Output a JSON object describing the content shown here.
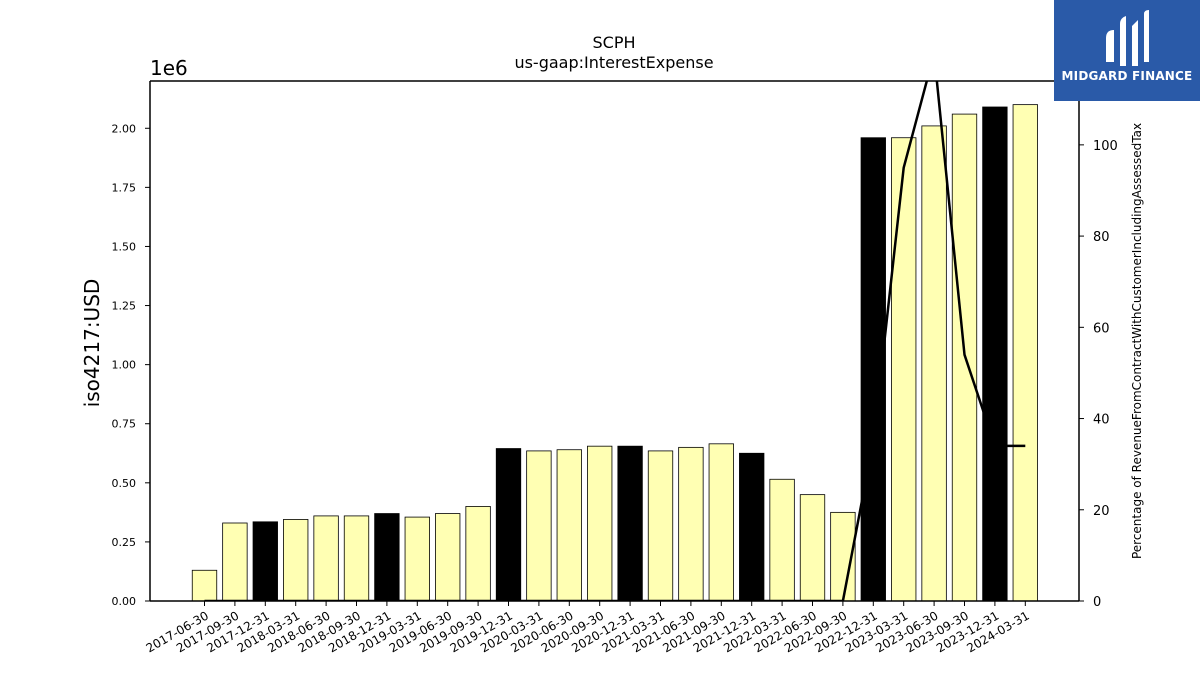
{
  "chart_data": {
    "type": "bar",
    "title": "SCPH",
    "subtitle": "us-gaap:InterestExpense",
    "ylabel": "iso4217:USD",
    "y_offset_label": "1e6",
    "y_scale_factor": 1000000,
    "ylim": [
      0,
      2200000
    ],
    "yticks": [
      "0.00",
      "0.25",
      "0.50",
      "0.75",
      "1.00",
      "1.25",
      "1.50",
      "1.75",
      "2.00"
    ],
    "y2label": "Percentage of RevenueFromContractWithCustomerIncludingAssessedTax",
    "y2lim": [
      0,
      114
    ],
    "y2ticks": [
      "0",
      "20",
      "40",
      "60",
      "80",
      "100"
    ],
    "colors": {
      "annual": "#000000",
      "quarterly": "#ffffb3",
      "edge": "#000000",
      "line": "#000000"
    },
    "categories": [
      "2017-06-30",
      "2017-09-30",
      "2017-12-31",
      "2018-03-31",
      "2018-06-30",
      "2018-09-30",
      "2018-12-31",
      "2019-03-31",
      "2019-06-30",
      "2019-09-30",
      "2019-12-31",
      "2020-03-31",
      "2020-06-30",
      "2020-09-30",
      "2020-12-31",
      "2021-03-31",
      "2021-06-30",
      "2021-09-30",
      "2021-12-31",
      "2022-03-31",
      "2022-06-30",
      "2022-09-30",
      "2022-12-31",
      "2023-03-31",
      "2023-06-30",
      "2023-09-30",
      "2023-12-31",
      "2024-03-31"
    ],
    "values": [
      130000,
      330000,
      335000,
      345000,
      360000,
      360000,
      370000,
      355000,
      370000,
      400000,
      645000,
      635000,
      640000,
      655000,
      655000,
      635000,
      650000,
      665000,
      625000,
      515000,
      450000,
      375000,
      1960000,
      1960000,
      2010000,
      2060000,
      2090000,
      2100000
    ],
    "bar_kind": [
      "q",
      "q",
      "a",
      "q",
      "q",
      "q",
      "a",
      "q",
      "q",
      "q",
      "a",
      "q",
      "q",
      "q",
      "a",
      "q",
      "q",
      "q",
      "a",
      "q",
      "q",
      "q",
      "a",
      "q",
      "q",
      "q",
      "a",
      "q"
    ],
    "line_series": {
      "name": "",
      "values": [
        0,
        0,
        0,
        0,
        0,
        0,
        0,
        0,
        0,
        0,
        0,
        0,
        0,
        0,
        0,
        0,
        0,
        0,
        0,
        0,
        0,
        0,
        35,
        95,
        120,
        54,
        34,
        34
      ]
    }
  },
  "logo": {
    "text": "MIDGARD FINANCE"
  }
}
